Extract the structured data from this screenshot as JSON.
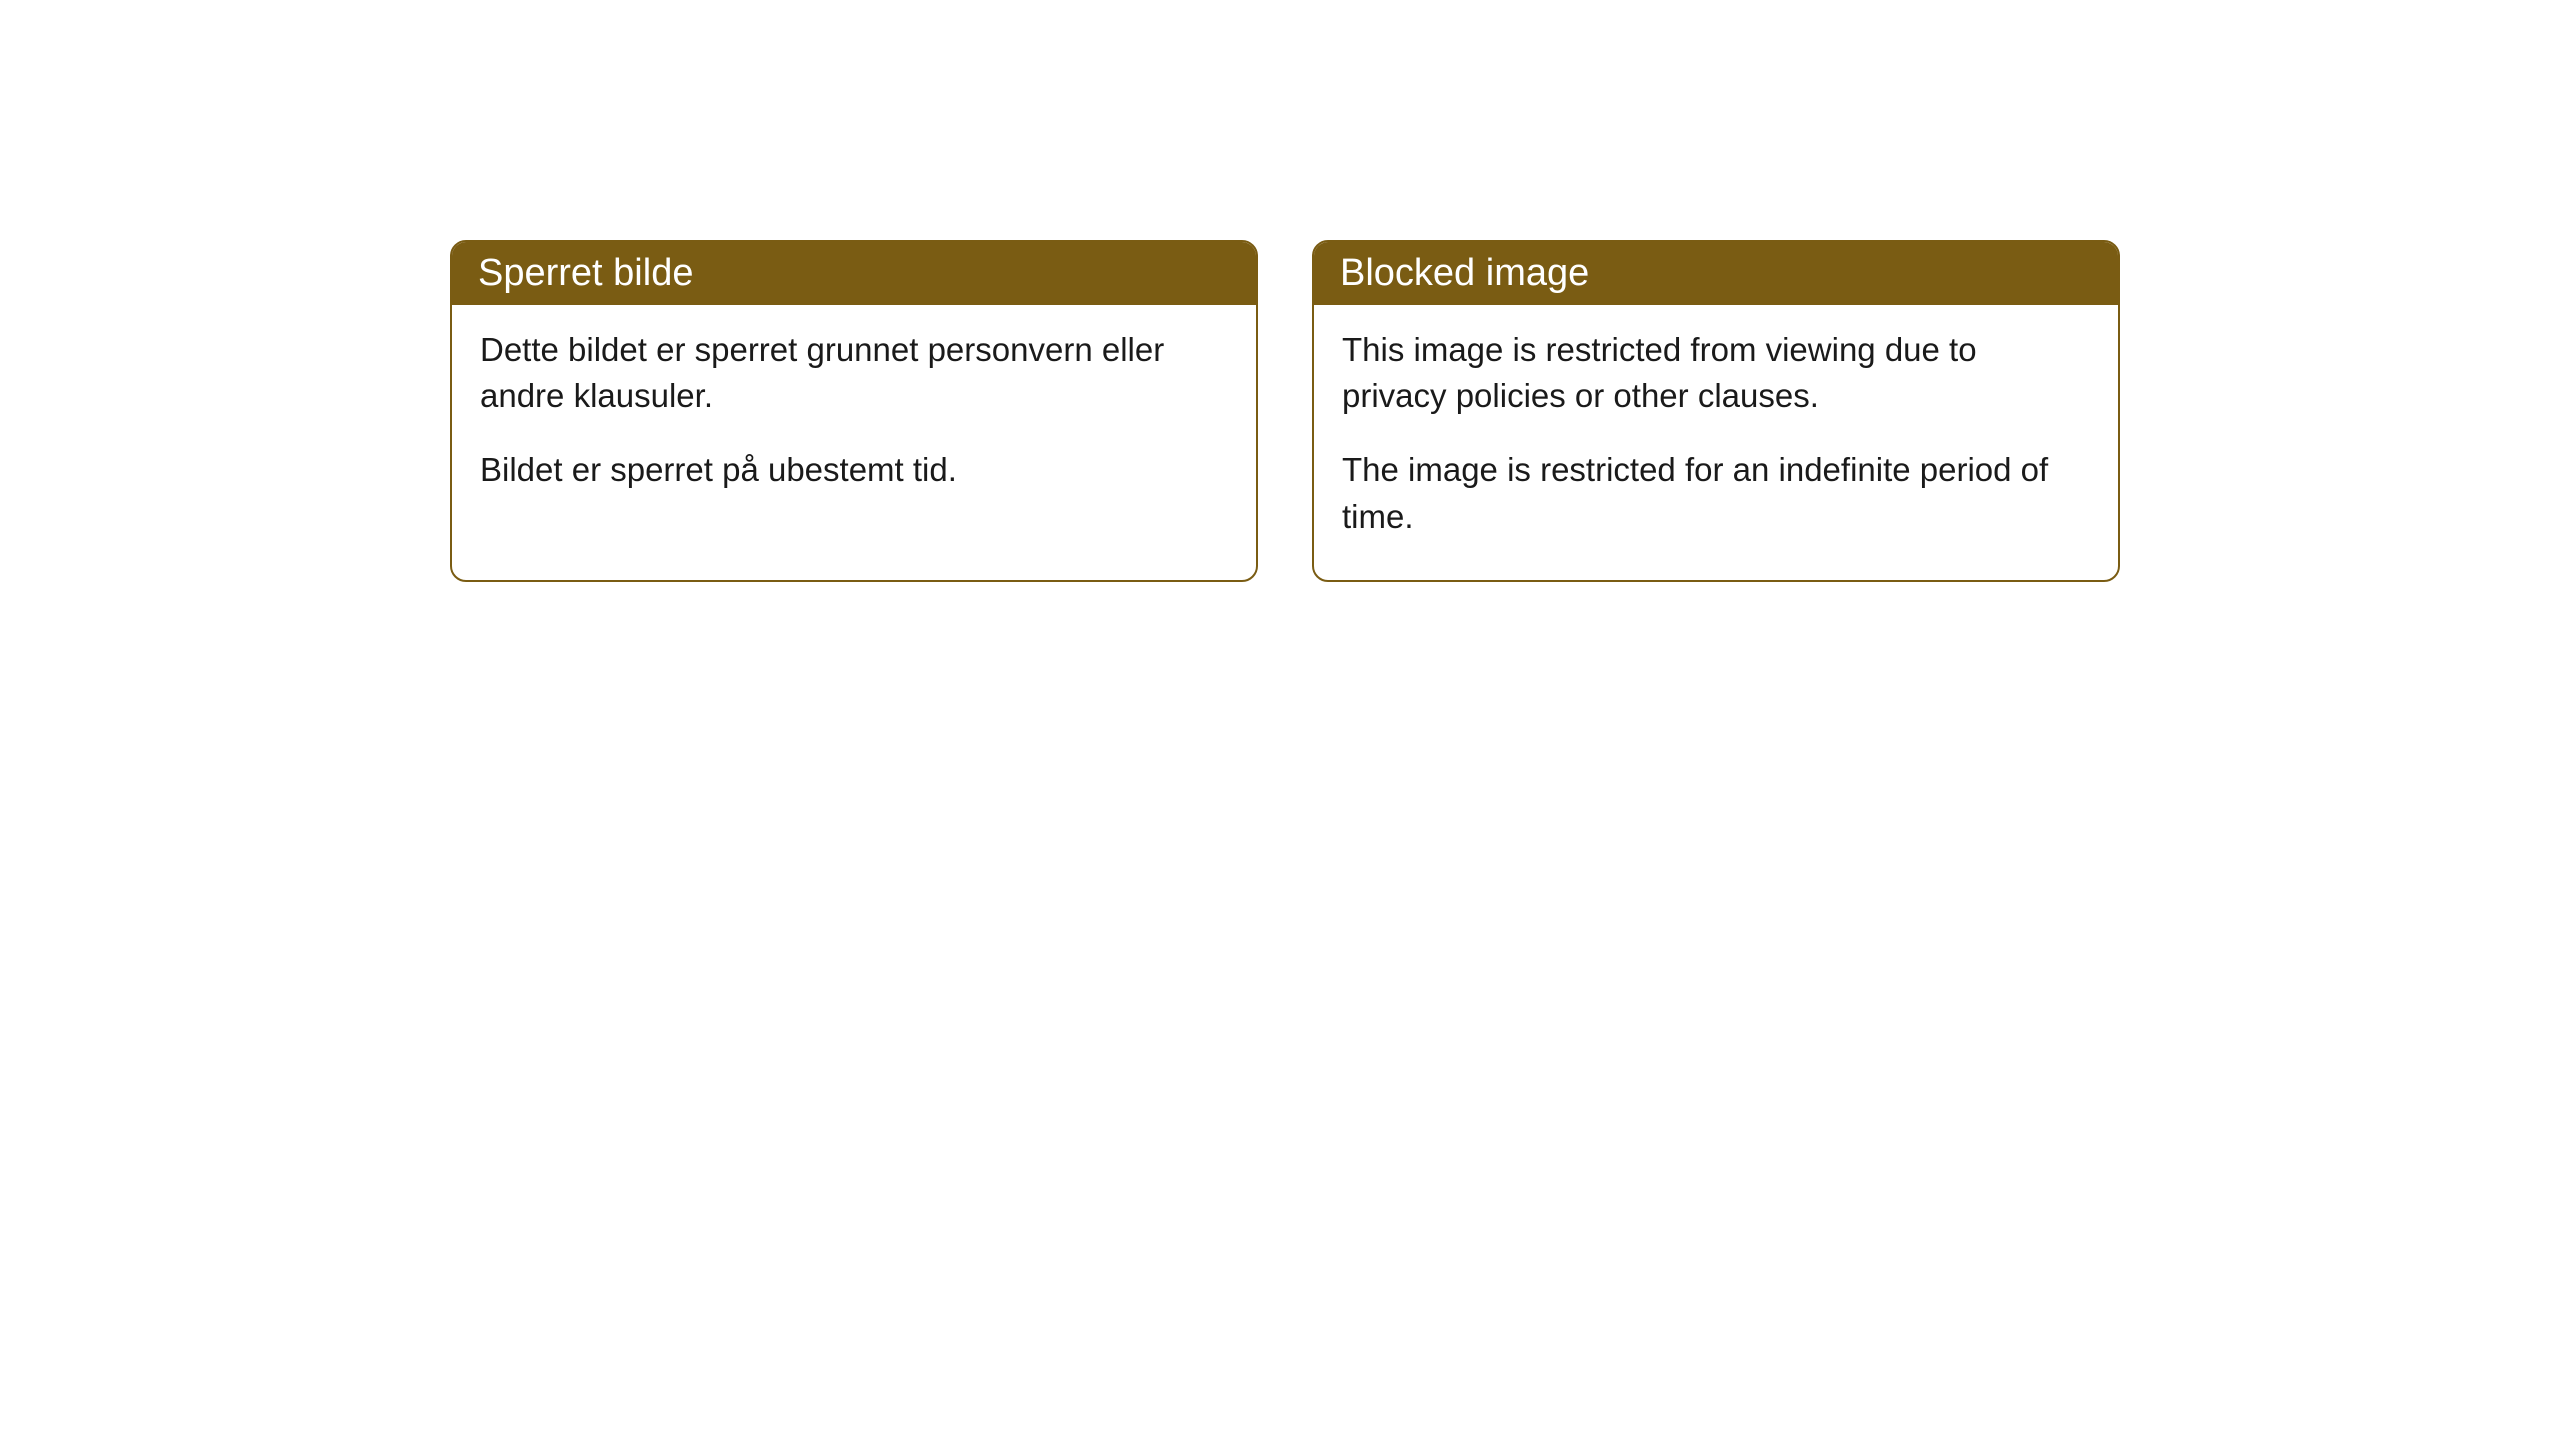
{
  "cards": [
    {
      "title": "Sperret bilde",
      "paragraph1": "Dette bildet er sperret grunnet personvern eller andre klausuler.",
      "paragraph2": "Bildet er sperret på ubestemt tid."
    },
    {
      "title": "Blocked image",
      "paragraph1": "This image is restricted from viewing due to privacy policies or other clauses.",
      "paragraph2": "The image is restricted for an indefinite period of time."
    }
  ],
  "colors": {
    "header_bg": "#7a5c13",
    "header_text": "#ffffff",
    "border": "#7a5c13",
    "body_bg": "#ffffff",
    "body_text": "#1a1a1a"
  }
}
